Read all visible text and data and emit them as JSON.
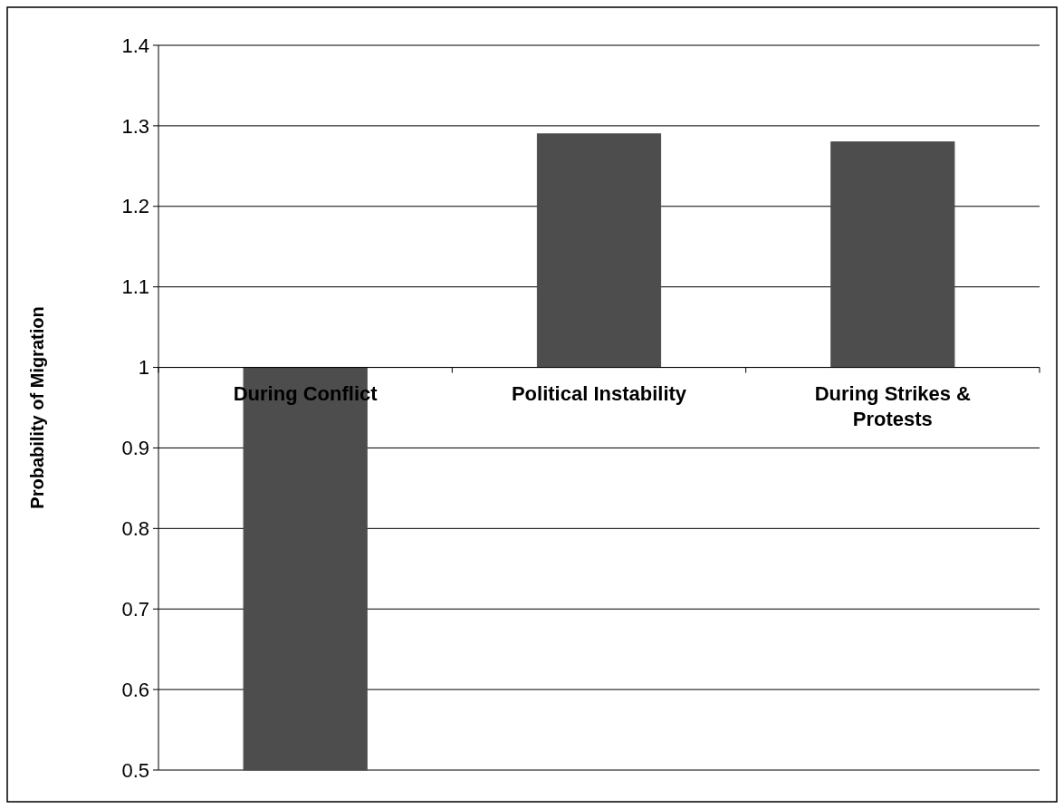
{
  "chart_data": {
    "type": "bar",
    "ylabel": "Probability of Migration",
    "categories": [
      "During Conflict",
      "Political Instability",
      "During Strikes & Protests"
    ],
    "base": [
      1,
      1,
      1
    ],
    "values": [
      -0.5,
      0.29,
      0.28
    ],
    "color": "#4d4d4d",
    "ylim": [
      0.5,
      1.4
    ],
    "yticks": [
      0.5,
      0.6,
      0.7,
      0.8,
      0.9,
      1,
      1.1,
      1.2,
      1.3,
      1.4
    ],
    "grid": "y"
  }
}
